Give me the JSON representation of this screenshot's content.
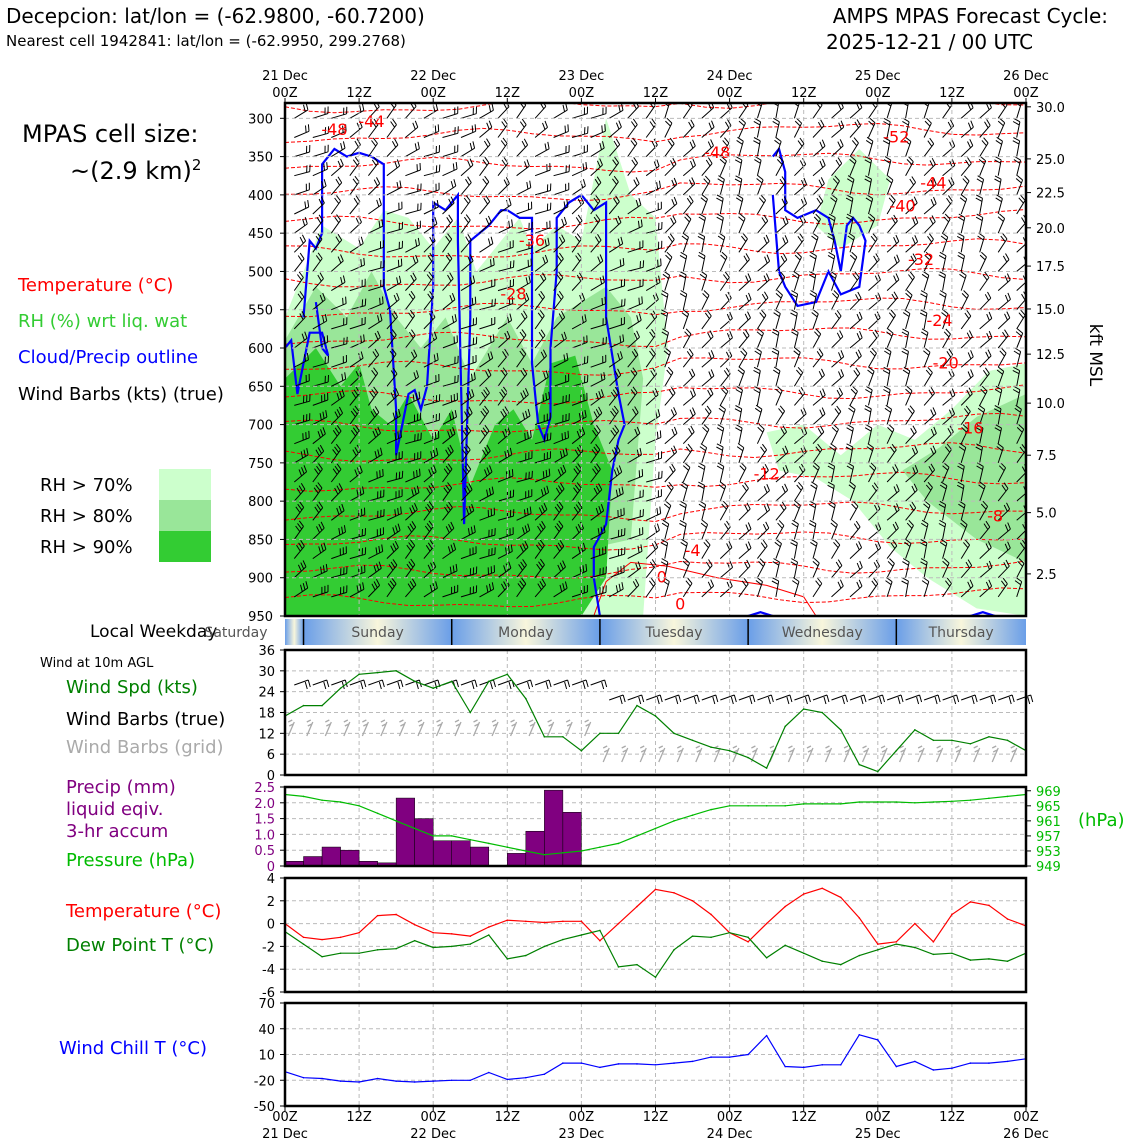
{
  "header": {
    "station": "Decepcion: lat/lon = (-62.9800, -60.7200)",
    "nearest_cell": "Nearest cell 1942841: lat/lon = (-62.9950, 299.2768)",
    "cycle_line1": "AMPS MPAS Forecast Cycle:",
    "cycle_line2": "2025-12-21 / 00 UTC"
  },
  "cell_size": {
    "line1": "MPAS cell size:",
    "line2": "~(2.9 km)",
    "exponent": "2"
  },
  "legend_top": {
    "temperature": "Temperature (°C)",
    "rh": "RH (%) wrt liq. wat",
    "cloud": "Cloud/Precip outline",
    "wind": "Wind Barbs (kts) (true)",
    "rh70": "RH > 70%",
    "rh80": "RH > 80%",
    "rh90": "RH > 90%"
  },
  "colors": {
    "temperature": "#ff0000",
    "rh_label": "#33cc33",
    "cloud": "#0000ff",
    "rh70": "#ccffcc",
    "rh80": "#99e699",
    "rh90": "#33cc33",
    "wind_speed": "#008000",
    "wind_grid": "#aaaaaa",
    "precip": "#800080",
    "pressure": "#00bb00",
    "dew_point": "#008000",
    "wind_chill": "#0000ff"
  },
  "weekday_label": "Local Weekday",
  "weekdays": [
    "Saturday",
    "Sunday",
    "Monday",
    "Tuesday",
    "Wednesday",
    "Thursday"
  ],
  "wind10m_label": "Wind at 10m AGL",
  "panel_labels": {
    "wind_spd": "Wind Spd (kts)",
    "wind_barbs": "Wind Barbs (true)",
    "wind_barbs_grid": "Wind Barbs (grid)",
    "precip1": "Precip (mm)",
    "precip2": "liquid eqiv.",
    "precip3": "3-hr accum",
    "pressure": "Pressure (hPa)",
    "pressure_unit": "(hPa)",
    "temperature": "Temperature (°C)",
    "dew_point": "Dew Point T (°C)",
    "wind_chill": "Wind Chill T (°C)"
  },
  "chart_data": [
    {
      "type": "heatmap",
      "name": "cross-section",
      "x_tick_top_dates": [
        "21 Dec",
        "",
        "22 Dec",
        "",
        "23 Dec",
        "",
        "24 Dec",
        "",
        "25 Dec",
        "",
        "26 Dec"
      ],
      "x_tick_top_times": [
        "00Z",
        "12Z",
        "00Z",
        "12Z",
        "00Z",
        "12Z",
        "00Z",
        "12Z",
        "00Z",
        "12Z",
        "00Z"
      ],
      "y_left_ticks": [
        300,
        350,
        400,
        450,
        500,
        550,
        600,
        650,
        700,
        750,
        800,
        850,
        900,
        950
      ],
      "y_left_range": [
        280,
        950
      ],
      "y_right_ticks": [
        {
          "p": 285,
          "label": "30.0"
        },
        {
          "p": 353,
          "label": "25.0"
        },
        {
          "p": 397,
          "label": "22.5"
        },
        {
          "p": 443,
          "label": "20.0"
        },
        {
          "p": 493,
          "label": "17.5"
        },
        {
          "p": 549,
          "label": "15.0"
        },
        {
          "p": 608,
          "label": "12.5"
        },
        {
          "p": 672,
          "label": "10.0"
        },
        {
          "p": 740,
          "label": "7.5"
        },
        {
          "p": 815,
          "label": "5.0"
        },
        {
          "p": 895,
          "label": "2.5"
        }
      ],
      "y_right_label": "kft MSL",
      "isotherm_labels": [
        {
          "t": "-48",
          "h": 8,
          "p": 315
        },
        {
          "t": "-44",
          "h": 14,
          "p": 305
        },
        {
          "t": "-52",
          "h": 99,
          "p": 325
        },
        {
          "t": "-48",
          "h": 70,
          "p": 345
        },
        {
          "t": "-44",
          "h": 105,
          "p": 385
        },
        {
          "t": "-40",
          "h": 100,
          "p": 415
        },
        {
          "t": "-36",
          "h": 40,
          "p": 460
        },
        {
          "t": "-32",
          "h": 103,
          "p": 485
        },
        {
          "t": "-28",
          "h": 37,
          "p": 530
        },
        {
          "t": "-24",
          "h": 106,
          "p": 565
        },
        {
          "t": "-20",
          "h": 107,
          "p": 620
        },
        {
          "t": "-16",
          "h": 111,
          "p": 705
        },
        {
          "t": "-12",
          "h": 78,
          "p": 765
        },
        {
          "t": "-8",
          "h": 115,
          "p": 820
        },
        {
          "t": "-4",
          "h": 66,
          "p": 865
        },
        {
          "t": "0",
          "h": 61,
          "p": 900
        },
        {
          "t": "0",
          "h": 64,
          "p": 935
        }
      ]
    },
    {
      "type": "line",
      "name": "wind-speed-10m",
      "ylabel": "Wind Spd (kts)",
      "yticks": [
        0,
        6,
        12,
        18,
        24,
        30,
        36
      ],
      "ylim": [
        0,
        36
      ],
      "x_hours": [
        0,
        3,
        6,
        9,
        12,
        15,
        18,
        21,
        24,
        27,
        30,
        33,
        36,
        39,
        42,
        45,
        48,
        51,
        54,
        57,
        60,
        63,
        66,
        69,
        72,
        75,
        78,
        81,
        84,
        87,
        90,
        93,
        96,
        99,
        102,
        105,
        108,
        111,
        114,
        117,
        120
      ],
      "values": [
        17,
        20,
        20,
        25,
        29,
        29.5,
        30,
        27,
        25,
        27,
        18,
        27,
        29,
        22,
        11,
        11,
        7,
        12,
        12,
        20,
        17,
        12,
        10,
        8,
        7,
        5,
        2,
        14,
        19,
        18,
        13,
        3,
        1,
        7,
        13,
        10,
        10,
        9,
        11,
        10,
        7
      ]
    },
    {
      "type": "bar",
      "name": "precip-3hr",
      "ylabel": "Precip (mm)",
      "yticks": [
        0,
        0.5,
        1.0,
        1.5,
        2.0,
        2.5
      ],
      "ylim": [
        0,
        2.5
      ],
      "bar_start_hours": [
        0,
        3,
        6,
        9,
        12,
        15,
        18,
        21,
        24,
        27,
        30,
        33,
        36,
        39,
        42,
        45,
        48,
        51,
        54,
        57
      ],
      "values": [
        0.15,
        0.3,
        0.6,
        0.5,
        0.15,
        0.1,
        2.15,
        1.5,
        0.8,
        0.8,
        0.6,
        0.0,
        0.4,
        1.1,
        2.4,
        1.7,
        0.0,
        0.0,
        0.0,
        0.0
      ]
    },
    {
      "type": "line",
      "name": "pressure",
      "ylabel": "Pressure (hPa)",
      "yticks": [
        949,
        953,
        957,
        961,
        965,
        969
      ],
      "ylim": [
        949,
        970
      ],
      "x_hours": [
        0,
        3,
        6,
        9,
        12,
        15,
        18,
        21,
        24,
        27,
        30,
        33,
        36,
        39,
        42,
        45,
        48,
        51,
        54,
        57,
        60,
        63,
        66,
        69,
        72,
        75,
        78,
        81,
        84,
        87,
        90,
        93,
        96,
        99,
        102,
        105,
        108,
        111,
        114,
        117,
        120
      ],
      "values": [
        968,
        967.5,
        966.5,
        966,
        965,
        963,
        961,
        959,
        957,
        957,
        956,
        955,
        954,
        953,
        952,
        952.5,
        953,
        954,
        955,
        957,
        959,
        961,
        962.5,
        964,
        965,
        965,
        965,
        965,
        965.5,
        965.5,
        965.5,
        966,
        966,
        966,
        965.8,
        966,
        966.2,
        966.5,
        967,
        967.5,
        968
      ]
    },
    {
      "type": "line",
      "name": "temperature-dewpoint",
      "yticks": [
        -6,
        -4,
        -2,
        0,
        2,
        4
      ],
      "ylim": [
        -6,
        4
      ],
      "x_hours": [
        0,
        3,
        6,
        9,
        12,
        15,
        18,
        21,
        24,
        27,
        30,
        33,
        36,
        39,
        42,
        45,
        48,
        51,
        54,
        57,
        60,
        63,
        66,
        69,
        72,
        75,
        78,
        81,
        84,
        87,
        90,
        93,
        96,
        99,
        102,
        105,
        108,
        111,
        114,
        117,
        120
      ],
      "series": [
        {
          "name": "Temperature (°C)",
          "values": [
            0,
            -1.2,
            -1.4,
            -1.2,
            -0.8,
            0.7,
            0.8,
            -0.1,
            -0.8,
            -0.9,
            -1.1,
            -0.3,
            0.3,
            0.2,
            0.1,
            0.2,
            0.2,
            -1.5,
            0,
            1.5,
            3.0,
            2.7,
            2.0,
            0.8,
            -0.8,
            -1.6,
            0,
            1.5,
            2.6,
            3.1,
            2.3,
            0.5,
            -1.8,
            -1.6,
            0,
            -1.6,
            0.8,
            1.9,
            1.6,
            0.4,
            -0.2
          ],
          "color": "#ff0000"
        },
        {
          "name": "Dew Point T (°C)",
          "values": [
            -0.7,
            -1.8,
            -2.9,
            -2.6,
            -2.6,
            -2.3,
            -2.2,
            -1.5,
            -2.1,
            -2.0,
            -1.8,
            -1.0,
            -3.1,
            -2.8,
            -2.0,
            -1.4,
            -1.0,
            -0.6,
            -3.8,
            -3.6,
            -4.7,
            -2.3,
            -1.1,
            -1.2,
            -0.8,
            -1.2,
            -3.0,
            -1.9,
            -2.6,
            -3.3,
            -3.6,
            -2.8,
            -2.3,
            -1.8,
            -2.1,
            -2.7,
            -2.6,
            -3.2,
            -3.1,
            -3.3,
            -2.6
          ],
          "color": "#008000"
        }
      ]
    },
    {
      "type": "line",
      "name": "wind-chill",
      "ylabel": "Wind Chill T (°C)",
      "yticks": [
        -50,
        -20,
        10,
        40,
        70
      ],
      "ylim": [
        -50,
        70
      ],
      "x_hours": [
        0,
        3,
        6,
        9,
        12,
        15,
        18,
        21,
        24,
        27,
        30,
        33,
        36,
        39,
        42,
        45,
        48,
        51,
        54,
        57,
        60,
        63,
        66,
        69,
        72,
        75,
        78,
        81,
        84,
        87,
        90,
        93,
        96,
        99,
        102,
        105,
        108,
        111,
        114,
        117,
        120
      ],
      "values": [
        -10,
        -17,
        -18,
        -21,
        -22,
        -18,
        -21,
        -22,
        -21,
        -20,
        -20,
        -11,
        -19,
        -17,
        -13,
        0,
        0,
        -5,
        -1,
        -1,
        -2,
        0,
        2,
        7,
        7,
        10,
        32,
        -4,
        -5,
        -2,
        -2,
        33,
        27,
        -4,
        2,
        -8,
        -6,
        0,
        0,
        2,
        5
      ]
    }
  ],
  "x_axis_bottom": {
    "times": [
      "00Z",
      "12Z",
      "00Z",
      "12Z",
      "00Z",
      "12Z",
      "00Z",
      "12Z",
      "00Z",
      "12Z",
      "00Z"
    ],
    "dates": [
      "21 Dec",
      "",
      "22 Dec",
      "",
      "23 Dec",
      "",
      "24 Dec",
      "",
      "25 Dec",
      "",
      "26 Dec"
    ]
  }
}
